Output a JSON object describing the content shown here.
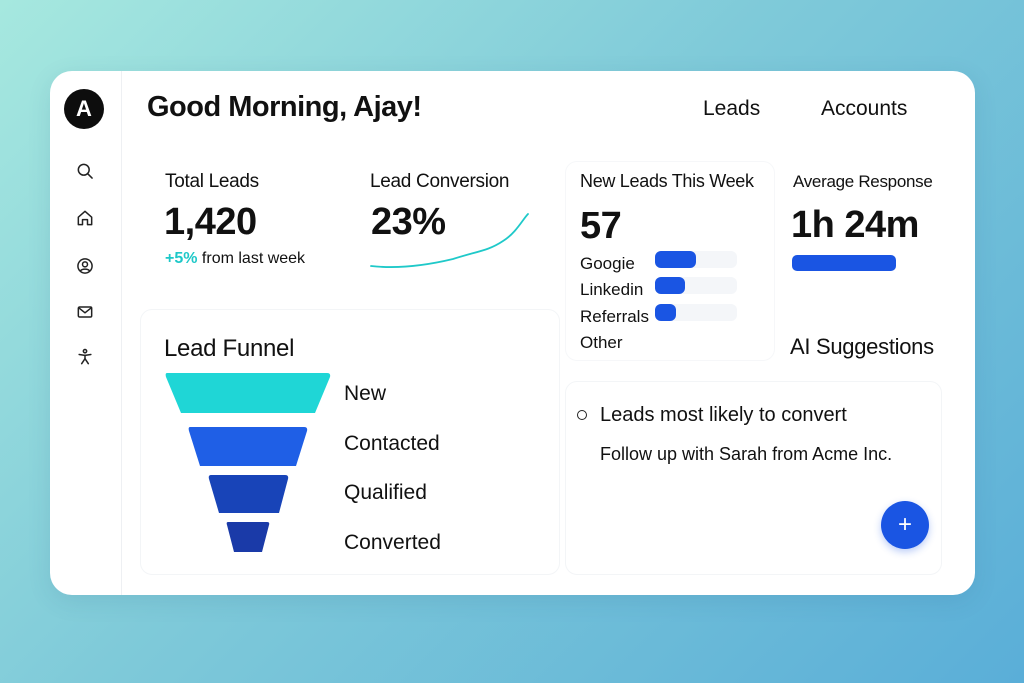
{
  "sidebar": {
    "avatar_initial": "A",
    "items": [
      {
        "icon": "search-icon"
      },
      {
        "icon": "home-icon"
      },
      {
        "icon": "user-circle-icon"
      },
      {
        "icon": "mail-icon"
      },
      {
        "icon": "person-activity-icon"
      }
    ]
  },
  "header": {
    "greeting": "Good Morning, Ajay!",
    "links": [
      "Leads",
      "Accounts"
    ]
  },
  "kpis": {
    "total_leads": {
      "label": "Total Leads",
      "value": "1,420",
      "delta": "+5%",
      "delta_suffix": " from last week"
    },
    "lead_conversion": {
      "label": "Lead Conversion",
      "value": "23%"
    },
    "new_leads": {
      "label": "New Leads This Week",
      "value": "57",
      "sources": [
        {
          "name": "Googie",
          "fraction": 0.5
        },
        {
          "name": "Linkedin",
          "fraction": 0.36
        },
        {
          "name": "Referrals",
          "fraction": 0.25
        },
        {
          "name": "Other",
          "fraction": 0
        }
      ]
    },
    "average_response": {
      "label": "Average Response",
      "value": "1h 24m"
    }
  },
  "funnel": {
    "title": "Lead Funnel",
    "stages": [
      "New",
      "Contacted",
      "Qualified",
      "Converted"
    ]
  },
  "ai_suggestions": {
    "title": "AI Suggestions",
    "items": [
      "Leads most likely to convert",
      "Follow up with Sarah from Acme Inc."
    ]
  },
  "fab_label": "+",
  "colors": {
    "accent_blue": "#1a55e3",
    "teal": "#1fd6d6",
    "funnel_blue_1": "#1f5fe6",
    "funnel_blue_2": "#1844b8",
    "funnel_blue_3": "#1a3aa8"
  }
}
